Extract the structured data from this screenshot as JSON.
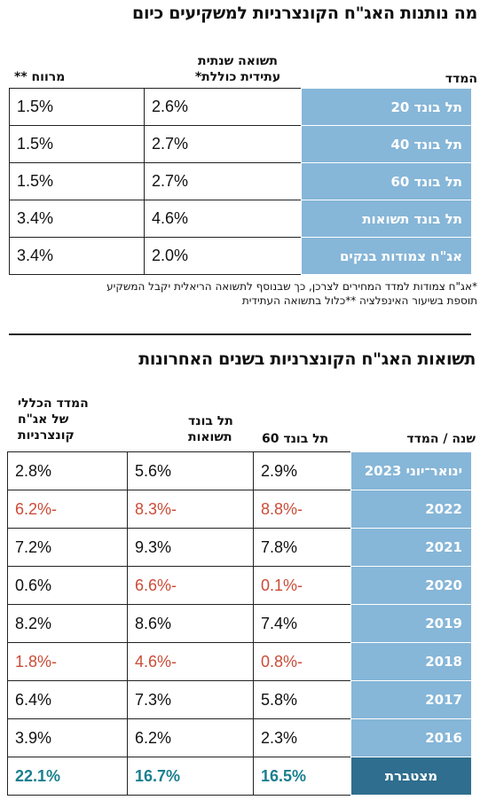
{
  "section1": {
    "title": "מה נותנות האג\"ח הקונצרניות למשקיעים כיום",
    "headers": {
      "index": "המדד",
      "yield_line1": "תשואה שנתית",
      "yield_line2": "עתידית כוללת*",
      "spread": "מרווח **"
    },
    "rows": [
      {
        "name": "תל בונד 20",
        "yield": "2.6%",
        "spread": "1.5%"
      },
      {
        "name": "תל בונד 40",
        "yield": "2.7%",
        "spread": "1.5%"
      },
      {
        "name": "תל בונד 60",
        "yield": "2.7%",
        "spread": "1.5%"
      },
      {
        "name": "תל בונד תשואות",
        "yield": "4.6%",
        "spread": "3.4%"
      },
      {
        "name": "אג\"ח צמודות בנקים",
        "yield": "2.0%",
        "spread": "3.4%"
      }
    ],
    "footnote_line1": "*אג\"ח צמודות למדד המחירים לצרכן, כך שבנוסף לתשואה הריאלית יקבל המשקיע",
    "footnote_line2": "תוספת בשיעור האינפלציה **כלול בתשואה העתידית"
  },
  "section2": {
    "title": "תשואות האג\"ח הקונצרניות בשנים האחרונות",
    "headers": {
      "year": "שנה / המדד",
      "telbond60": "תל בונד 60",
      "yields_line1": "תל בונד",
      "yields_line2": "תשואות",
      "general_line1": "המדד הכללי",
      "general_line2": "של אג\"ח",
      "general_line3": "קונצרניות"
    },
    "rows": [
      {
        "year": "ינואר־יוני 2023",
        "telbond60": "2.9%",
        "yields": "5.6%",
        "general": "2.8%"
      },
      {
        "year": "2022",
        "telbond60": "-8.8%",
        "yields": "-8.3%",
        "general": "-6.2%"
      },
      {
        "year": "2021",
        "telbond60": "7.8%",
        "yields": "9.3%",
        "general": "7.2%"
      },
      {
        "year": "2020",
        "telbond60": "-0.1%",
        "yields": "-6.6%",
        "general": "0.6%"
      },
      {
        "year": "2019",
        "telbond60": "7.4%",
        "yields": "8.6%",
        "general": "8.2%"
      },
      {
        "year": "2018",
        "telbond60": "-0.8%",
        "yields": "-4.6%",
        "general": "-1.8%"
      },
      {
        "year": "2017",
        "telbond60": "5.8%",
        "yields": "7.3%",
        "general": "6.4%"
      },
      {
        "year": "2016",
        "telbond60": "2.3%",
        "yields": "6.2%",
        "general": "3.9%"
      }
    ],
    "total": {
      "label": "מצטברת",
      "telbond60": "16.5%",
      "yields": "16.7%",
      "general": "22.1%"
    }
  },
  "colors": {
    "index_cell": "#86b6d8",
    "total_cell": "#2f6e8e",
    "negative": "#cc4b37",
    "total_value": "#1a7f8e"
  }
}
